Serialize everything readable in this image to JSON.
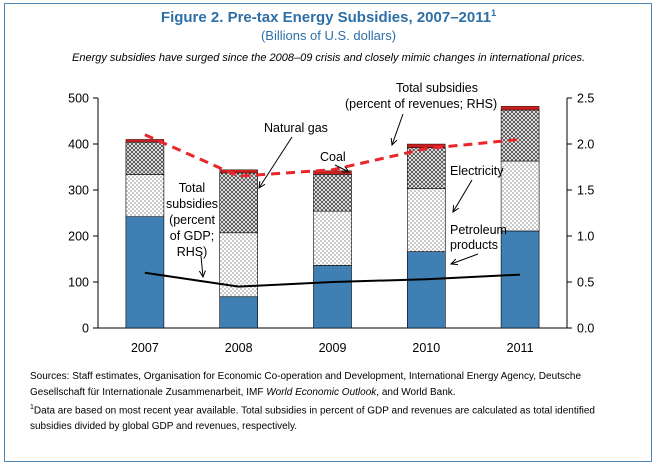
{
  "title": "Figure 2. Pre-tax Energy Subsidies, 2007–2011",
  "title_footnote_mark": "1",
  "subtitle": "(Billions of U.S. dollars)",
  "caption": "Energy subsidies have surged since the 2008–09 crisis and closely mimic changes in international prices.",
  "notes": {
    "sources_prefix": "Sources: Staff estimates, Organisation for Economic Co-operation and Development, International Energy Agency, Deutsche Gesellschaft für Internationale Zusammenarbeit, IMF ",
    "sources_italic": "World Economic Outlook",
    "sources_suffix": ", and World Bank.",
    "footnote_mark": "1",
    "footnote_text": "Data are based on most recent year available. Total subsidies in percent of GDP and revenues are calculated as total identified subsidies divided by global GDP and revenues, respectively."
  },
  "chart_data": {
    "type": "bar",
    "stacked": true,
    "categories": [
      "2007",
      "2008",
      "2009",
      "2010",
      "2011"
    ],
    "ylim": [
      0,
      500
    ],
    "yticks": [
      "0",
      "100",
      "200",
      "300",
      "400",
      "500"
    ],
    "ylim_right": [
      0,
      2.5
    ],
    "yticks_right": [
      "0.0",
      "0.5",
      "1.0",
      "1.5",
      "2.0",
      "2.5"
    ],
    "series": [
      {
        "name": "Petroleum products",
        "values": [
          242,
          68,
          136,
          166,
          211
        ],
        "color": "#3f7fb3"
      },
      {
        "name": "Electricity",
        "values": [
          92,
          139,
          118,
          137,
          152
        ],
        "color": "#ffffff"
      },
      {
        "name": "Natural gas",
        "values": [
          70,
          130,
          80,
          89,
          111
        ],
        "color": "#e6e6e6"
      },
      {
        "name": "Coal",
        "values": [
          6,
          7,
          8,
          8,
          8
        ],
        "color": "#c8201f"
      }
    ],
    "lines": [
      {
        "name": "Total subsidies (percent of revenues; RHS)",
        "values": [
          2.1,
          1.65,
          1.72,
          1.95,
          2.05
        ],
        "style": "dashed",
        "color": "#e8262c",
        "axis": "right"
      },
      {
        "name": "Total subsidies (percent of GDP; RHS)",
        "values": [
          0.6,
          0.45,
          0.5,
          0.53,
          0.58
        ],
        "style": "solid",
        "color": "#000000",
        "axis": "right"
      }
    ],
    "annotations": {
      "natural_gas": "Natural gas",
      "coal": "Coal",
      "electricity": "Electricity",
      "petroleum_1": "Petroleum",
      "petroleum_2": "products",
      "rev_1": "Total subsidies",
      "rev_2": "(percent of revenues; RHS)",
      "gdp_1": "Total",
      "gdp_2": "subsidies",
      "gdp_3": "(percent",
      "gdp_4": "of GDP;",
      "gdp_5": "RHS)"
    }
  }
}
